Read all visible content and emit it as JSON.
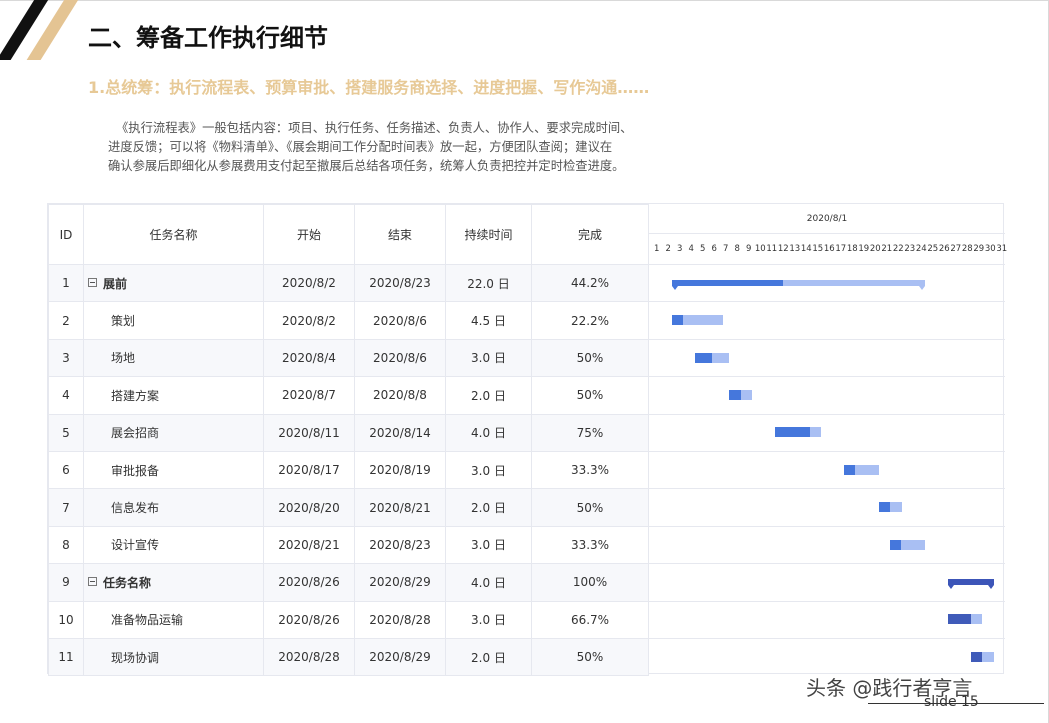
{
  "title": "二、筹备工作执行细节",
  "subtitle": "1.总统筹：执行流程表、预算审批、搭建服务商选择、进度把握、写作沟通……",
  "description": [
    "《执行流程表》一般包括内容：项目、执行任务、任务描述、负责人、协作人、要求完成时间、",
    "进度反馈；可以将《物料清单》、《展会期间工作分配时间表》放一起，方便团队查阅；建议在",
    "确认参展后即细化从参展费用支付起至撤展后总结各项任务，统筹人负责把控并定时检查进度。"
  ],
  "table": {
    "headers": [
      "ID",
      "任务名称",
      "开始",
      "结束",
      "持续时间",
      "完成"
    ],
    "rows": [
      {
        "id": "1",
        "name": "展前",
        "start": "2020/8/2",
        "end": "2020/8/23",
        "duration": "22.0 日",
        "done": "44.2%",
        "group": true
      },
      {
        "id": "2",
        "name": "策划",
        "start": "2020/8/2",
        "end": "2020/8/6",
        "duration": "4.5 日",
        "done": "22.2%"
      },
      {
        "id": "3",
        "name": "场地",
        "start": "2020/8/4",
        "end": "2020/8/6",
        "duration": "3.0 日",
        "done": "50%"
      },
      {
        "id": "4",
        "name": "搭建方案",
        "start": "2020/8/7",
        "end": "2020/8/8",
        "duration": "2.0 日",
        "done": "50%"
      },
      {
        "id": "5",
        "name": "展会招商",
        "start": "2020/8/11",
        "end": "2020/8/14",
        "duration": "4.0 日",
        "done": "75%"
      },
      {
        "id": "6",
        "name": "审批报备",
        "start": "2020/8/17",
        "end": "2020/8/19",
        "duration": "3.0 日",
        "done": "33.3%"
      },
      {
        "id": "7",
        "name": "信息发布",
        "start": "2020/8/20",
        "end": "2020/8/21",
        "duration": "2.0 日",
        "done": "50%"
      },
      {
        "id": "8",
        "name": "设计宣传",
        "start": "2020/8/21",
        "end": "2020/8/23",
        "duration": "3.0 日",
        "done": "33.3%"
      },
      {
        "id": "9",
        "name": "任务名称",
        "start": "2020/8/26",
        "end": "2020/8/29",
        "duration": "4.0 日",
        "done": "100%",
        "group": true
      },
      {
        "id": "10",
        "name": "准备物品运输",
        "start": "2020/8/26",
        "end": "2020/8/28",
        "duration": "3.0 日",
        "done": "66.7%"
      },
      {
        "id": "11",
        "name": "现场协调",
        "start": "2020/8/28",
        "end": "2020/8/29",
        "duration": "2.0 日",
        "done": "50%"
      }
    ]
  },
  "gantt": {
    "month_label": "2020/8/1",
    "days": [
      "1",
      "2",
      "3",
      "4",
      "5",
      "6",
      "7",
      "8",
      "9",
      "10",
      "11",
      "12",
      "13",
      "14",
      "15",
      "16",
      "17",
      "18",
      "19",
      "20",
      "21",
      "22",
      "23",
      "24",
      "25",
      "26",
      "27",
      "28",
      "29",
      "30",
      "31"
    ],
    "tasks": [
      {
        "start_day": 2,
        "duration_days": 22,
        "progress": 0.442,
        "summary": true,
        "dark": false
      },
      {
        "start_day": 2,
        "duration_days": 4.5,
        "progress": 0.222
      },
      {
        "start_day": 4,
        "duration_days": 3,
        "progress": 0.5
      },
      {
        "start_day": 7,
        "duration_days": 2,
        "progress": 0.5
      },
      {
        "start_day": 11,
        "duration_days": 4,
        "progress": 0.75
      },
      {
        "start_day": 17,
        "duration_days": 3,
        "progress": 0.333
      },
      {
        "start_day": 20,
        "duration_days": 2,
        "progress": 0.5
      },
      {
        "start_day": 21,
        "duration_days": 3,
        "progress": 0.333
      },
      {
        "start_day": 26,
        "duration_days": 4,
        "progress": 1.0,
        "summary": true,
        "dark": true
      },
      {
        "start_day": 26,
        "duration_days": 3,
        "progress": 0.667,
        "dark": true
      },
      {
        "start_day": 28,
        "duration_days": 2,
        "progress": 0.5,
        "dark": true
      }
    ],
    "colors": {
      "progress": "#4577dc",
      "remaining": "#a9bff3",
      "progress_dark": "#3f5bb9"
    }
  },
  "watermark": {
    "text": "头条 @践行者亨言",
    "slide": "slide 15"
  }
}
